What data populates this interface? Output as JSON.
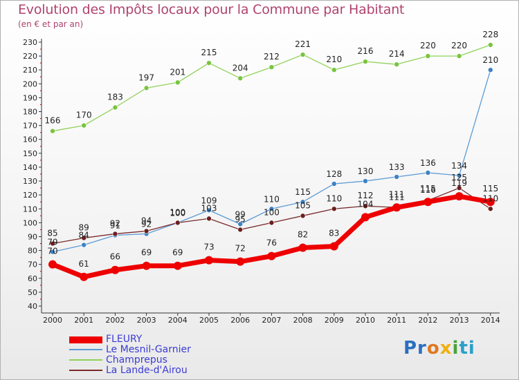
{
  "header": {
    "title": "Evolution des Impôts locaux pour la Commune par Habitant",
    "subtitle": "(en € et par an)"
  },
  "logo": {
    "text": "Proxiti"
  },
  "chart_data": {
    "type": "line",
    "title": "Evolution des Impôts locaux pour la Commune par Habitant",
    "subtitle": "(en € et par an)",
    "xlabel": "",
    "ylabel": "",
    "ylim": [
      40,
      230
    ],
    "ytick_step": 10,
    "grid": false,
    "legend_position": "bottom-left",
    "x": [
      "2000",
      "2001",
      "2002",
      "2003",
      "2004",
      "2005",
      "2006",
      "2007",
      "2008",
      "2009",
      "2010",
      "2011",
      "2012",
      "2013",
      "2014"
    ],
    "series": [
      {
        "name": "FLEURY",
        "color": "#ee0000",
        "point_color": "#ee0000",
        "width": 7,
        "marker_radius": 6,
        "values": [
          70,
          61,
          66,
          69,
          69,
          73,
          72,
          76,
          82,
          83,
          104,
          111,
          115,
          119,
          115
        ]
      },
      {
        "name": "Le Mesnil-Garnier",
        "color": "#5b9bd5",
        "point_color": "#3d82c4",
        "width": 1.3,
        "marker_radius": 3.5,
        "values": [
          79,
          84,
          91,
          92,
          100,
          109,
          99,
          110,
          115,
          128,
          130,
          133,
          136,
          134,
          210
        ]
      },
      {
        "name": "Champrepus",
        "color": "#8fd158",
        "point_color": "#79c43e",
        "width": 1.3,
        "marker_radius": 3.5,
        "values": [
          166,
          170,
          183,
          197,
          201,
          215,
          204,
          212,
          221,
          210,
          216,
          214,
          220,
          220,
          228
        ]
      },
      {
        "name": "La Lande-d'Airou",
        "color": "#7a2a2a",
        "point_color": "#6b1f1f",
        "width": 1.3,
        "marker_radius": 3.5,
        "values": [
          85,
          89,
          92,
          94,
          100,
          103,
          95,
          100,
          105,
          110,
          112,
          111,
          116,
          125,
          110
        ]
      }
    ]
  }
}
